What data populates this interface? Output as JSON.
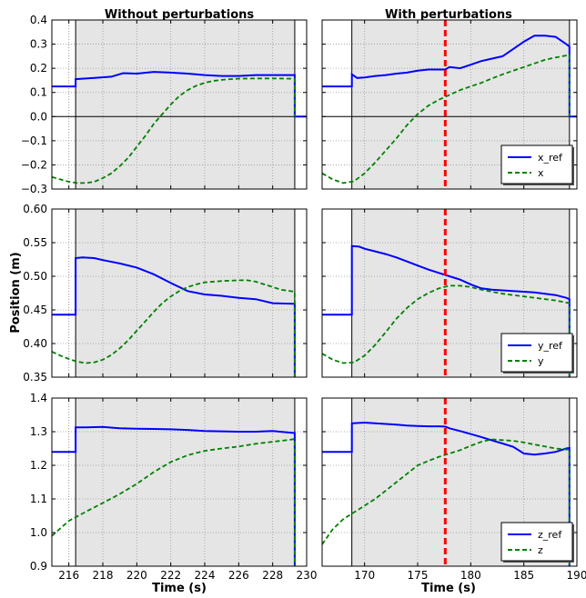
{
  "figure": {
    "column_titles": [
      "Without perturbations",
      "With perturbations"
    ],
    "xlabel": "Time (s)",
    "ylabel": "Position (m)"
  },
  "colors": {
    "reference": "#0000ff",
    "actual": "#008000",
    "perturbation_marker": "#ff0000",
    "active_region": "#e5e5e5",
    "grid": "#999999"
  },
  "chart_data": [
    {
      "type": "line",
      "row": 0,
      "col": 0,
      "xlim": [
        215,
        230
      ],
      "ylim": [
        -0.3,
        0.4
      ],
      "xticks": [
        216,
        218,
        220,
        222,
        224,
        226,
        228,
        230
      ],
      "yticks": [
        -0.3,
        -0.2,
        -0.1,
        0.0,
        0.1,
        0.2,
        0.3,
        0.4
      ],
      "yticklabels": [
        "−0.3",
        "−0.2",
        "−0.1",
        "0.0",
        "0.1",
        "0.2",
        "0.3",
        "0.4"
      ],
      "show_xticklabels": false,
      "active_range": [
        216.4,
        229.3
      ],
      "zero_line": true,
      "dotted_lines": [
        216
      ],
      "legend": null,
      "series": [
        {
          "role": "ref",
          "x": [
            215,
            216.4,
            216.4,
            217.5,
            218.5,
            219.2,
            220,
            221,
            222,
            223,
            224,
            225,
            226,
            227,
            228,
            229.3,
            229.3,
            230
          ],
          "y": [
            0.125,
            0.125,
            0.155,
            0.16,
            0.165,
            0.18,
            0.178,
            0.185,
            0.182,
            0.178,
            0.172,
            0.168,
            0.168,
            0.172,
            0.172,
            0.172,
            0.0,
            0.0
          ]
        },
        {
          "role": "act",
          "x": [
            215,
            215.5,
            216,
            216.5,
            217,
            217.5,
            218,
            218.5,
            219,
            219.5,
            220,
            220.5,
            221,
            221.5,
            222,
            222.5,
            223,
            223.5,
            224,
            224.5,
            225,
            225.5,
            226,
            227,
            228,
            229.3,
            229.3
          ],
          "y": [
            -0.25,
            -0.26,
            -0.27,
            -0.275,
            -0.275,
            -0.27,
            -0.255,
            -0.235,
            -0.205,
            -0.17,
            -0.125,
            -0.08,
            -0.03,
            0.01,
            0.05,
            0.085,
            0.11,
            0.128,
            0.14,
            0.148,
            0.152,
            0.155,
            0.157,
            0.158,
            0.158,
            0.157,
            0.0
          ]
        }
      ]
    },
    {
      "type": "line",
      "row": 0,
      "col": 1,
      "xlim": [
        166,
        190
      ],
      "ylim": [
        -0.3,
        0.4
      ],
      "xticks": [
        170,
        175,
        180,
        185,
        190
      ],
      "yticks": [
        -0.3,
        -0.2,
        -0.1,
        0.0,
        0.1,
        0.2,
        0.3,
        0.4
      ],
      "show_yticklabels": false,
      "show_xticklabels": false,
      "active_range": [
        168.8,
        189.3
      ],
      "zero_line": true,
      "dotted_lines": [],
      "perturbation_x": 177.6,
      "legend": [
        "x_ref",
        "x"
      ],
      "series": [
        {
          "role": "ref",
          "x": [
            166,
            168.8,
            168.8,
            169.3,
            170,
            171,
            172,
            173,
            174,
            175,
            176,
            177.6,
            178,
            179,
            180,
            181,
            182,
            183,
            184,
            185,
            186,
            187,
            188,
            189,
            189.3,
            189.3,
            190
          ],
          "y": [
            0.125,
            0.125,
            0.175,
            0.16,
            0.162,
            0.168,
            0.172,
            0.178,
            0.182,
            0.19,
            0.195,
            0.195,
            0.205,
            0.2,
            0.215,
            0.23,
            0.24,
            0.25,
            0.28,
            0.31,
            0.335,
            0.335,
            0.33,
            0.3,
            0.29,
            0.0,
            0.0
          ]
        },
        {
          "role": "act",
          "x": [
            166,
            167,
            168,
            169,
            170,
            171,
            172,
            173,
            174,
            175,
            176,
            177,
            178,
            179,
            180,
            181,
            182,
            183,
            184,
            185,
            186,
            187,
            188,
            189.3,
            189.3
          ],
          "y": [
            -0.235,
            -0.26,
            -0.275,
            -0.268,
            -0.235,
            -0.19,
            -0.14,
            -0.09,
            -0.035,
            0.01,
            0.045,
            0.07,
            0.09,
            0.11,
            0.125,
            0.14,
            0.158,
            0.175,
            0.19,
            0.205,
            0.22,
            0.235,
            0.245,
            0.255,
            0.0
          ]
        }
      ]
    },
    {
      "type": "line",
      "row": 1,
      "col": 0,
      "xlim": [
        215,
        230
      ],
      "ylim": [
        0.35,
        0.6
      ],
      "xticks": [
        216,
        218,
        220,
        222,
        224,
        226,
        228,
        230
      ],
      "yticks": [
        0.35,
        0.4,
        0.45,
        0.5,
        0.55,
        0.6
      ],
      "yticklabels": [
        "0.35",
        "0.40",
        "0.45",
        "0.50",
        "0.55",
        "0.60"
      ],
      "show_xticklabels": false,
      "active_range": [
        216.4,
        229.3
      ],
      "zero_line": false,
      "dotted_lines": [
        216
      ],
      "legend": null,
      "series": [
        {
          "role": "ref",
          "x": [
            215,
            216.4,
            216.4,
            216.8,
            217.5,
            218,
            219,
            220,
            221,
            222,
            223,
            224,
            225,
            226,
            227,
            228,
            229.3,
            229.3
          ],
          "y": [
            0.443,
            0.443,
            0.527,
            0.528,
            0.527,
            0.524,
            0.519,
            0.513,
            0.503,
            0.49,
            0.478,
            0.473,
            0.471,
            0.468,
            0.466,
            0.46,
            0.459,
            0.35
          ]
        },
        {
          "role": "act",
          "x": [
            215,
            215.5,
            216,
            216.5,
            217,
            217.5,
            218,
            218.5,
            219,
            219.5,
            220,
            220.5,
            221,
            221.5,
            222,
            222.5,
            223,
            223.5,
            224,
            225,
            226,
            226.5,
            227,
            227.5,
            228,
            228.5,
            229.3,
            229.3
          ],
          "y": [
            0.388,
            0.382,
            0.377,
            0.373,
            0.371,
            0.372,
            0.376,
            0.383,
            0.393,
            0.405,
            0.419,
            0.433,
            0.447,
            0.46,
            0.47,
            0.478,
            0.484,
            0.488,
            0.491,
            0.493,
            0.494,
            0.494,
            0.492,
            0.488,
            0.484,
            0.48,
            0.477,
            0.35
          ]
        }
      ]
    },
    {
      "type": "line",
      "row": 1,
      "col": 1,
      "xlim": [
        166,
        190
      ],
      "ylim": [
        0.35,
        0.6
      ],
      "xticks": [
        170,
        175,
        180,
        185,
        190
      ],
      "yticks": [
        0.35,
        0.4,
        0.45,
        0.5,
        0.55,
        0.6
      ],
      "show_yticklabels": false,
      "show_xticklabels": false,
      "active_range": [
        168.8,
        189.3
      ],
      "zero_line": false,
      "dotted_lines": [],
      "perturbation_x": 177.6,
      "legend": [
        "y_ref",
        "y"
      ],
      "series": [
        {
          "role": "ref",
          "x": [
            166,
            168.8,
            168.8,
            169.5,
            170,
            171,
            172,
            173,
            174,
            175,
            176,
            177,
            177.6,
            178,
            179,
            180,
            181,
            182,
            183,
            184,
            185,
            186,
            187,
            188,
            189,
            189.3,
            189.3
          ],
          "y": [
            0.443,
            0.443,
            0.545,
            0.544,
            0.541,
            0.537,
            0.533,
            0.528,
            0.522,
            0.516,
            0.51,
            0.505,
            0.502,
            0.5,
            0.495,
            0.488,
            0.482,
            0.48,
            0.479,
            0.478,
            0.477,
            0.476,
            0.474,
            0.472,
            0.468,
            0.466,
            0.35
          ]
        },
        {
          "role": "act",
          "x": [
            166,
            167,
            168,
            169,
            170,
            171,
            172,
            173,
            174,
            175,
            176,
            177,
            178,
            179,
            180,
            181,
            182,
            183,
            184,
            185,
            186,
            187,
            188,
            189.3,
            189.3
          ],
          "y": [
            0.385,
            0.376,
            0.371,
            0.372,
            0.382,
            0.398,
            0.417,
            0.437,
            0.453,
            0.466,
            0.475,
            0.482,
            0.486,
            0.486,
            0.484,
            0.48,
            0.477,
            0.474,
            0.472,
            0.47,
            0.468,
            0.466,
            0.464,
            0.46,
            0.35
          ]
        }
      ]
    },
    {
      "type": "line",
      "row": 2,
      "col": 0,
      "xlim": [
        215,
        230
      ],
      "ylim": [
        0.9,
        1.4
      ],
      "xticks": [
        216,
        218,
        220,
        222,
        224,
        226,
        228,
        230
      ],
      "yticks": [
        0.9,
        1.0,
        1.1,
        1.2,
        1.3,
        1.4
      ],
      "yticklabels": [
        "0.9",
        "1.0",
        "1.1",
        "1.2",
        "1.3",
        "1.4"
      ],
      "xticklabels": [
        "216",
        "218",
        "220",
        "222",
        "224",
        "226",
        "228",
        "230"
      ],
      "show_xticklabels": true,
      "active_range": [
        216.4,
        229.3
      ],
      "zero_line": false,
      "dotted_lines": [
        216
      ],
      "legend": null,
      "series": [
        {
          "role": "ref",
          "x": [
            215,
            216.4,
            216.4,
            217,
            218,
            219,
            220,
            221,
            222,
            223,
            224,
            225,
            226,
            227,
            228,
            229.3,
            229.3
          ],
          "y": [
            1.24,
            1.24,
            1.313,
            1.313,
            1.314,
            1.31,
            1.309,
            1.308,
            1.307,
            1.305,
            1.302,
            1.301,
            1.3,
            1.3,
            1.302,
            1.296,
            0.9
          ]
        },
        {
          "role": "act",
          "x": [
            215,
            216,
            217,
            218,
            219,
            220,
            221,
            222,
            223,
            224,
            225,
            226,
            227,
            228,
            229,
            229.3,
            229.3
          ],
          "y": [
            0.99,
            1.035,
            1.062,
            1.088,
            1.115,
            1.145,
            1.18,
            1.21,
            1.23,
            1.243,
            1.25,
            1.256,
            1.264,
            1.27,
            1.276,
            1.278,
            0.9
          ]
        }
      ]
    },
    {
      "type": "line",
      "row": 2,
      "col": 1,
      "xlim": [
        166,
        190
      ],
      "ylim": [
        0.9,
        1.4
      ],
      "xticks": [
        170,
        175,
        180,
        185,
        190
      ],
      "yticks": [
        0.9,
        1.0,
        1.1,
        1.2,
        1.3,
        1.4
      ],
      "xticklabels": [
        "170",
        "175",
        "180",
        "185",
        "190"
      ],
      "show_yticklabels": false,
      "show_xticklabels": true,
      "active_range": [
        168.8,
        189.3
      ],
      "zero_line": false,
      "dotted_lines": [],
      "perturbation_x": 177.6,
      "legend": [
        "z_ref",
        "z"
      ],
      "series": [
        {
          "role": "ref",
          "x": [
            166,
            168.8,
            168.8,
            170,
            171,
            172,
            173,
            174,
            175,
            176,
            177,
            177.6,
            178,
            179,
            180,
            181,
            182,
            183,
            184,
            185,
            186,
            187,
            188,
            189,
            189.3,
            189.3
          ],
          "y": [
            1.24,
            1.24,
            1.325,
            1.327,
            1.325,
            1.323,
            1.321,
            1.318,
            1.317,
            1.316,
            1.316,
            1.315,
            1.31,
            1.302,
            1.293,
            1.284,
            1.274,
            1.265,
            1.255,
            1.235,
            1.232,
            1.235,
            1.24,
            1.25,
            1.252,
            0.9
          ]
        },
        {
          "role": "act",
          "x": [
            166,
            167,
            168,
            169,
            170,
            171,
            172,
            173,
            174,
            175,
            176,
            177,
            178,
            179,
            180,
            181,
            182,
            183,
            184,
            185,
            186,
            187,
            188,
            189,
            189.3,
            189.3
          ],
          "y": [
            0.965,
            1.01,
            1.04,
            1.06,
            1.08,
            1.1,
            1.125,
            1.15,
            1.175,
            1.2,
            1.213,
            1.225,
            1.235,
            1.245,
            1.258,
            1.27,
            1.277,
            1.275,
            1.273,
            1.268,
            1.262,
            1.256,
            1.25,
            1.247,
            1.247,
            0.9
          ]
        }
      ]
    }
  ]
}
